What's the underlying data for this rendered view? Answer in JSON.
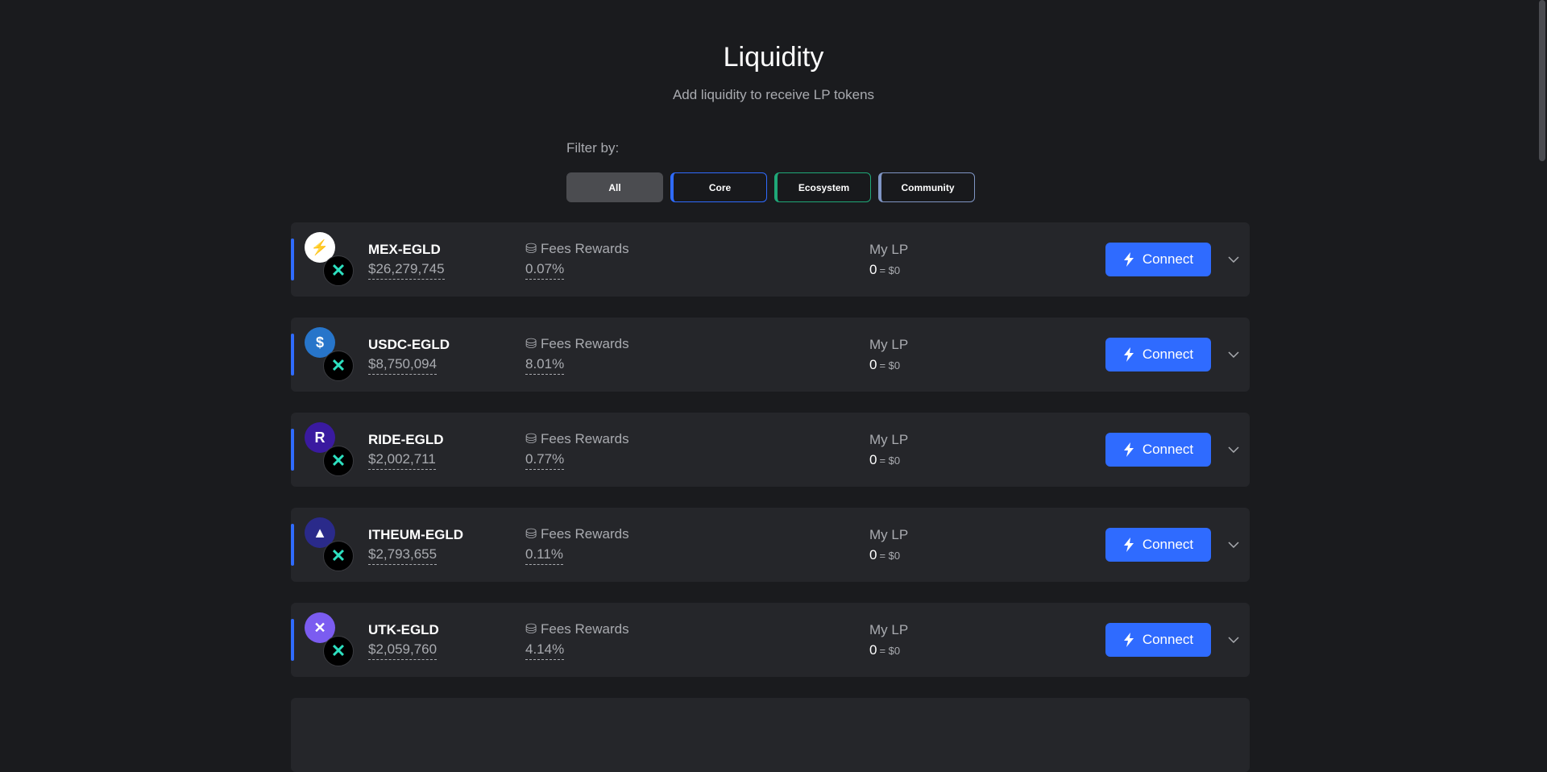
{
  "header": {
    "title": "Liquidity",
    "subtitle": "Add liquidity to receive LP tokens"
  },
  "filter": {
    "label": "Filter by:",
    "options": [
      {
        "label": "All",
        "color": "#4b4c50",
        "active": true
      },
      {
        "label": "Core",
        "color": "#2f6bff"
      },
      {
        "label": "Ecosystem",
        "color": "#1fa878"
      },
      {
        "label": "Community",
        "color": "#7f95c4"
      }
    ]
  },
  "pools": [
    {
      "name": "MEX-EGLD",
      "tvl": "$26,279,745",
      "fees_label": "Fees Rewards",
      "fees": "0.07%",
      "lp_label": "My LP",
      "lp": "0",
      "lp_usd": "= $0",
      "connect": "Connect",
      "icon": "mex-icon",
      "icon_bg": "#ffffff",
      "icon_fg": "#2f4fe0",
      "glyph": "⚡"
    },
    {
      "name": "USDC-EGLD",
      "tvl": "$8,750,094",
      "fees_label": "Fees Rewards",
      "fees": "8.01%",
      "lp_label": "My LP",
      "lp": "0",
      "lp_usd": "= $0",
      "connect": "Connect",
      "icon": "usdc-icon",
      "icon_bg": "#2775ca",
      "icon_fg": "#ffffff",
      "glyph": "$"
    },
    {
      "name": "RIDE-EGLD",
      "tvl": "$2,002,711",
      "fees_label": "Fees Rewards",
      "fees": "0.77%",
      "lp_label": "My LP",
      "lp": "0",
      "lp_usd": "= $0",
      "connect": "Connect",
      "icon": "ride-icon",
      "icon_bg": "#3a1aa0",
      "icon_fg": "#ffffff",
      "glyph": "R"
    },
    {
      "name": "ITHEUM-EGLD",
      "tvl": "$2,793,655",
      "fees_label": "Fees Rewards",
      "fees": "0.11%",
      "lp_label": "My LP",
      "lp": "0",
      "lp_usd": "= $0",
      "connect": "Connect",
      "icon": "itheum-icon",
      "icon_bg": "#2a2a8a",
      "icon_fg": "#ffffff",
      "glyph": "▲"
    },
    {
      "name": "UTK-EGLD",
      "tvl": "$2,059,760",
      "fees_label": "Fees Rewards",
      "fees": "4.14%",
      "lp_label": "My LP",
      "lp": "0",
      "lp_usd": "= $0",
      "connect": "Connect",
      "icon": "utk-icon",
      "icon_bg": "#7b5cf0",
      "icon_fg": "#ffffff",
      "glyph": "✕"
    }
  ],
  "egld_glyph": "✕"
}
